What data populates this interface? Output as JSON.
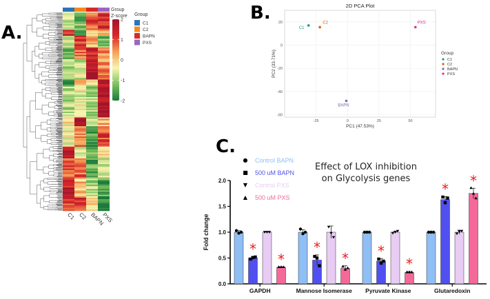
{
  "panels": {
    "a": "A.",
    "b": "B.",
    "c": "C."
  },
  "chart_data": [
    {
      "id": "heatmap",
      "type": "heatmap",
      "title": "",
      "columns": [
        "C1",
        "C2",
        "BAPN",
        "PXS"
      ],
      "column_annotation_title": "Group",
      "colorbar": {
        "title": "Z-score",
        "ticks": [
          2,
          1,
          0,
          -1,
          -2
        ],
        "range": [
          -2,
          2
        ],
        "colors": [
          "#1a7a3c",
          "#7cc15e",
          "#f7f5b0",
          "#f7a055",
          "#d8262a",
          "#a1142a"
        ]
      },
      "legend": {
        "title": "Group",
        "items": [
          {
            "label": "C1",
            "color": "#2a75b8"
          },
          {
            "label": "C2",
            "color": "#f7881f"
          },
          {
            "label": "BAPN",
            "color": "#d62a2a"
          },
          {
            "label": "PXS",
            "color": "#9a66c2"
          }
        ]
      },
      "row_blocks": [
        {
          "rows": 12,
          "values": [
            -0.6,
            -1.3,
            0.9,
            1.2
          ]
        },
        {
          "rows": 4,
          "values": [
            1.4,
            -1.5,
            -0.2,
            0.3
          ]
        },
        {
          "rows": 8,
          "values": [
            -0.7,
            1.1,
            0.3,
            -1.4
          ]
        },
        {
          "rows": 8,
          "values": [
            -1.2,
            0.7,
            1.4,
            0.6
          ]
        },
        {
          "rows": 14,
          "values": [
            -0.8,
            -0.7,
            1.9,
            0.5
          ]
        },
        {
          "rows": 4,
          "values": [
            -1.9,
            0.5,
            -0.4,
            1.6
          ]
        },
        {
          "rows": 22,
          "values": [
            -0.9,
            -0.5,
            -0.9,
            1.9
          ]
        },
        {
          "rows": 6,
          "values": [
            -0.2,
            1.9,
            -0.6,
            0.2
          ]
        },
        {
          "rows": 14,
          "values": [
            -0.3,
            0.6,
            -1.6,
            1.0
          ]
        },
        {
          "rows": 8,
          "values": [
            1.7,
            -0.6,
            -1.2,
            -0.2
          ]
        },
        {
          "rows": 14,
          "values": [
            0.9,
            0.7,
            -1.4,
            -0.6
          ]
        },
        {
          "rows": 12,
          "values": [
            1.5,
            0.1,
            -0.8,
            -1.5
          ]
        },
        {
          "rows": 10,
          "values": [
            1.1,
            1.1,
            -0.2,
            -1.8
          ]
        }
      ]
    },
    {
      "id": "pca",
      "type": "scatter",
      "title": "2D PCA Plot",
      "xlabel": "PC1 (47.53%)",
      "ylabel": "PC2 (33.71%)",
      "xlim": [
        -50,
        70
      ],
      "ylim": [
        -62,
        30
      ],
      "xticks": [
        -25,
        0,
        25,
        50
      ],
      "yticks": [
        20,
        0,
        -20,
        -40,
        -60
      ],
      "grid": true,
      "legend_title": "Group",
      "legend_position": "right",
      "points": [
        {
          "label": "C1",
          "x": -31,
          "y": 17,
          "color": "#1a9e77"
        },
        {
          "label": "C2",
          "x": -22,
          "y": 15.5,
          "color": "#d95f02"
        },
        {
          "label": "BAPN",
          "x": -1,
          "y": -48,
          "color": "#7570b3"
        },
        {
          "label": "PXS",
          "x": 54,
          "y": 15.5,
          "color": "#e7298a"
        }
      ]
    },
    {
      "id": "bar",
      "type": "bar",
      "title": "Effect of LOX inhibition on Glycolysis genes",
      "title_lines": [
        "Effect of LOX inhibition",
        "on Glycolysis genes"
      ],
      "xlabel": "",
      "ylabel": "Fold change",
      "ylim": [
        0,
        2.0
      ],
      "yticks": [
        "0.0",
        "0.5",
        "1.0",
        "1.5",
        "2.0"
      ],
      "categories": [
        "GAPDH",
        "Mannose Isomerase",
        "Pyruvate Kinase",
        "Glutaredoxin"
      ],
      "significance_marker": "*",
      "series": [
        {
          "name": "Control BAPN",
          "marker": "●",
          "color": "#8fbff4",
          "values": [
            1.0,
            1.0,
            1.0,
            1.0
          ],
          "errors": [
            0.03,
            0.05,
            0.01,
            0.01
          ],
          "significant": [
            false,
            false,
            false,
            false
          ],
          "points": [
            [
              1.03,
              0.98,
              1.0
            ],
            [
              1.06,
              0.97,
              1.0
            ],
            [
              1.0,
              1.0,
              1.0
            ],
            [
              1.0,
              1.0,
              1.0
            ]
          ]
        },
        {
          "name": "500 uM BAPN",
          "marker": "■",
          "color": "#5050f0",
          "values": [
            0.5,
            0.46,
            0.44,
            1.63
          ],
          "errors": [
            0.03,
            0.1,
            0.05,
            0.06
          ],
          "significant": [
            true,
            true,
            true,
            true
          ],
          "points": [
            [
              0.48,
              0.51,
              0.52
            ],
            [
              0.53,
              0.5,
              0.35
            ],
            [
              0.48,
              0.4,
              0.44
            ],
            [
              1.68,
              1.57,
              1.66
            ]
          ]
        },
        {
          "name": "Control PXS",
          "marker": "▼",
          "color": "#e8ccf4",
          "values": [
            1.0,
            1.0,
            1.0,
            1.0
          ],
          "errors": [
            0.01,
            0.12,
            0.02,
            0.04
          ],
          "significant": [
            false,
            false,
            false,
            false
          ],
          "points": [
            [
              1.0,
              1.0,
              1.0
            ],
            [
              1.1,
              0.98,
              0.9
            ],
            [
              0.98,
              1.0,
              1.02
            ],
            [
              0.97,
              1.01,
              1.02
            ]
          ]
        },
        {
          "name": "500 uM PXS",
          "marker": "▲",
          "color": "#f5689a",
          "values": [
            0.32,
            0.3,
            0.22,
            1.75
          ],
          "errors": [
            0.01,
            0.05,
            0.02,
            0.1
          ],
          "significant": [
            true,
            true,
            true,
            true
          ],
          "points": [
            [
              0.33,
              0.33,
              0.33
            ],
            [
              0.34,
              0.28,
              0.31
            ],
            [
              0.23,
              0.23,
              0.23
            ],
            [
              1.86,
              1.75,
              1.66
            ]
          ]
        }
      ],
      "legend_position": "top-left"
    }
  ]
}
